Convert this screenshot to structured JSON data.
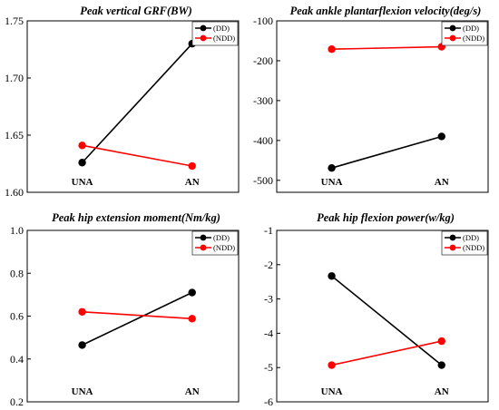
{
  "chart_data": [
    {
      "type": "line",
      "title": "Peak vertical GRF(BW)",
      "categories": [
        "UNA",
        "AN"
      ],
      "ylim": [
        1.6,
        1.75
      ],
      "yticks": [
        1.6,
        1.65,
        1.7,
        1.75
      ],
      "ytick_labels": [
        "1.60",
        "1.65",
        "1.70",
        "1.75"
      ],
      "legend_position": "top-right",
      "series": [
        {
          "name": "(DD)",
          "color": "#000000",
          "values": [
            1.626,
            1.73
          ]
        },
        {
          "name": "(NDD)",
          "color": "#ff0000",
          "values": [
            1.641,
            1.623
          ]
        }
      ]
    },
    {
      "type": "line",
      "title": "Peak ankle plantarflexion velocity(deg/s)",
      "categories": [
        "UNA",
        "AN"
      ],
      "ylim": [
        -530,
        -100
      ],
      "yticks": [
        -500,
        -400,
        -300,
        -200,
        -100
      ],
      "ytick_labels": [
        "-500",
        "-400",
        "-300",
        "-200",
        "-100"
      ],
      "legend_position": "top-right",
      "series": [
        {
          "name": "(DD)",
          "color": "#000000",
          "values": [
            -469,
            -390
          ]
        },
        {
          "name": "(NDD)",
          "color": "#ff0000",
          "values": [
            -171,
            -165
          ]
        }
      ]
    },
    {
      "type": "line",
      "title": "Peak hip extension moment(Nm/kg)",
      "categories": [
        "UNA",
        "AN"
      ],
      "ylim": [
        0.2,
        1.0
      ],
      "yticks": [
        0.2,
        0.4,
        0.6,
        0.8,
        1.0
      ],
      "ytick_labels": [
        "0.2",
        "0.4",
        "0.6",
        "0.8",
        "1.0"
      ],
      "legend_position": "top-right",
      "series": [
        {
          "name": "(DD)",
          "color": "#000000",
          "values": [
            0.465,
            0.71
          ]
        },
        {
          "name": "(NDD)",
          "color": "#ff0000",
          "values": [
            0.62,
            0.588
          ]
        }
      ]
    },
    {
      "type": "line",
      "title": "Peak hip flexion power(w/kg)",
      "categories": [
        "UNA",
        "AN"
      ],
      "ylim": [
        -6,
        -1
      ],
      "yticks": [
        -6,
        -5,
        -4,
        -3,
        -2,
        -1
      ],
      "ytick_labels": [
        "-6",
        "-5",
        "-4",
        "-3",
        "-2",
        "-1"
      ],
      "legend_position": "top-right",
      "series": [
        {
          "name": "(DD)",
          "color": "#000000",
          "values": [
            -2.33,
            -4.93
          ]
        },
        {
          "name": "(NDD)",
          "color": "#ff0000",
          "values": [
            -4.93,
            -4.23
          ]
        }
      ]
    }
  ]
}
